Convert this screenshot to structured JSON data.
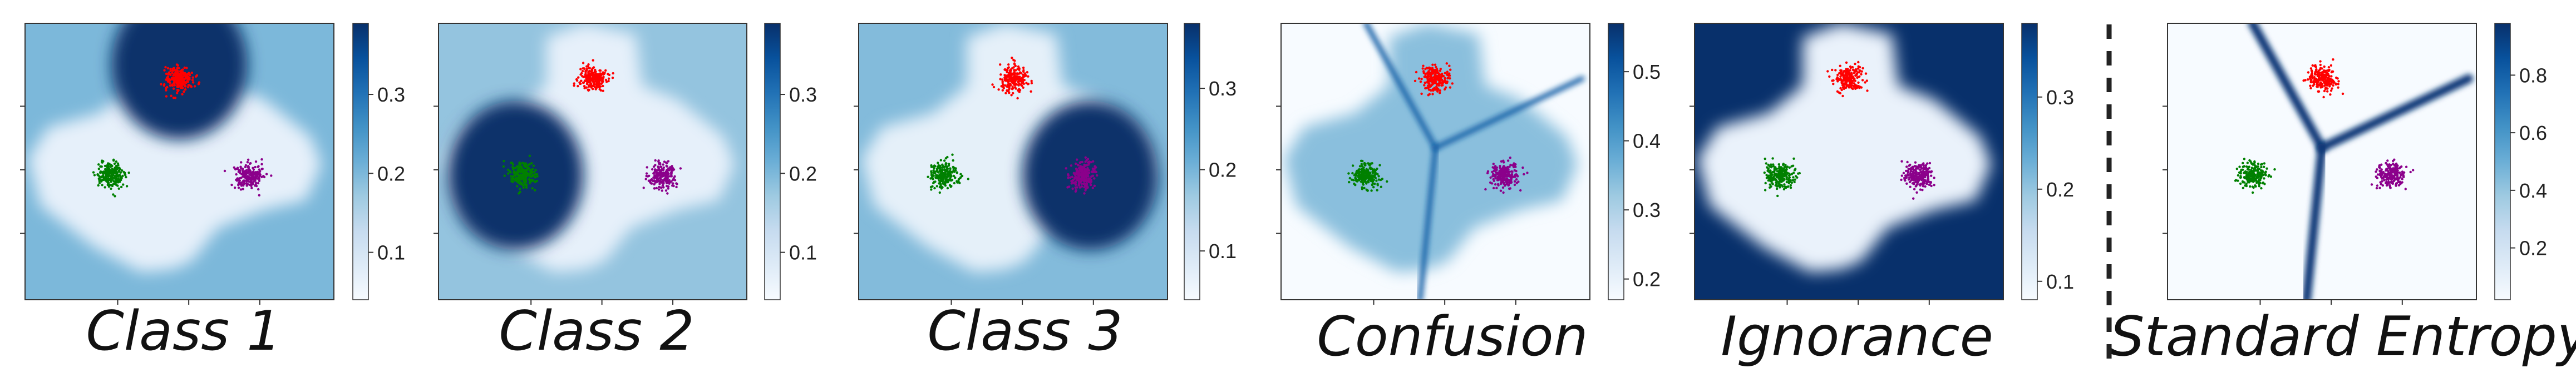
{
  "chart_data": [
    {
      "type": "heatmap",
      "title": "Class 1",
      "colorbar": {
        "min": 0.04,
        "max": 0.39,
        "ticks": [
          0.1,
          0.2,
          0.3
        ],
        "colormap": "Blues"
      },
      "clusters": [
        {
          "color": "#ff0000",
          "center": [
            0.0,
            0.6
          ]
        },
        {
          "color": "#008000",
          "center": [
            -0.45,
            -0.1
          ]
        },
        {
          "color": "#8b008b",
          "center": [
            0.45,
            -0.1
          ]
        }
      ],
      "field": {
        "base": 0.2,
        "lobe_level": 0.07,
        "blobs": [
          {
            "center": [
              0.0,
              0.7
            ],
            "level": 0.39
          }
        ]
      },
      "grid": false
    },
    {
      "type": "heatmap",
      "title": "Class 2",
      "colorbar": {
        "min": 0.04,
        "max": 0.39,
        "ticks": [
          0.1,
          0.2,
          0.3
        ],
        "colormap": "Blues"
      },
      "clusters": [
        {
          "color": "#ff0000",
          "center": [
            0.0,
            0.6
          ]
        },
        {
          "color": "#008000",
          "center": [
            -0.45,
            -0.1
          ]
        },
        {
          "color": "#8b008b",
          "center": [
            0.45,
            -0.1
          ]
        }
      ],
      "field": {
        "base": 0.18,
        "lobe_level": 0.07,
        "blobs": [
          {
            "center": [
              -0.5,
              -0.1
            ],
            "level": 0.39
          }
        ]
      },
      "grid": false
    },
    {
      "type": "heatmap",
      "title": "Class 3",
      "colorbar": {
        "min": 0.04,
        "max": 0.38,
        "ticks": [
          0.1,
          0.2,
          0.3
        ],
        "colormap": "Blues"
      },
      "clusters": [
        {
          "color": "#ff0000",
          "center": [
            0.0,
            0.6
          ]
        },
        {
          "color": "#008000",
          "center": [
            -0.45,
            -0.1
          ]
        },
        {
          "color": "#8b008b",
          "center": [
            0.45,
            -0.1
          ]
        }
      ],
      "field": {
        "base": 0.19,
        "lobe_level": 0.07,
        "blobs": [
          {
            "center": [
              0.5,
              -0.1
            ],
            "level": 0.38
          }
        ]
      },
      "grid": false
    },
    {
      "type": "heatmap",
      "title": "Confusion",
      "colorbar": {
        "min": 0.17,
        "max": 0.57,
        "ticks": [
          0.2,
          0.3,
          0.4,
          0.5
        ],
        "colormap": "Blues"
      },
      "clusters": [
        {
          "color": "#ff0000",
          "center": [
            0.0,
            0.6
          ]
        },
        {
          "color": "#008000",
          "center": [
            -0.45,
            -0.1
          ]
        },
        {
          "color": "#8b008b",
          "center": [
            0.45,
            -0.1
          ]
        }
      ],
      "field": {
        "base": 0.17,
        "lobe_level": 0.34,
        "boundary_level": 0.5,
        "blobs": []
      },
      "grid": false
    },
    {
      "type": "heatmap",
      "title": "Ignorance",
      "colorbar": {
        "min": 0.08,
        "max": 0.38,
        "ticks": [
          0.1,
          0.2,
          0.3
        ],
        "colormap": "Blues"
      },
      "clusters": [
        {
          "color": "#ff0000",
          "center": [
            0.0,
            0.6
          ]
        },
        {
          "color": "#008000",
          "center": [
            -0.45,
            -0.1
          ]
        },
        {
          "color": "#8b008b",
          "center": [
            0.45,
            -0.1
          ]
        }
      ],
      "field": {
        "base": 0.38,
        "lobe_level": 0.1,
        "blobs": []
      },
      "grid": false
    },
    {
      "type": "heatmap",
      "title": "Standard Entropy",
      "colorbar": {
        "min": 0.02,
        "max": 0.98,
        "ticks": [
          0.2,
          0.4,
          0.6,
          0.8
        ],
        "colormap": "Blues"
      },
      "clusters": [
        {
          "color": "#ff0000",
          "center": [
            0.0,
            0.6
          ]
        },
        {
          "color": "#008000",
          "center": [
            -0.45,
            -0.1
          ]
        },
        {
          "color": "#8b008b",
          "center": [
            0.45,
            -0.1
          ]
        }
      ],
      "field": {
        "base": 0.02,
        "lobe_level": 0.02,
        "boundary_level": 0.95,
        "blobs": []
      },
      "grid": false
    }
  ]
}
